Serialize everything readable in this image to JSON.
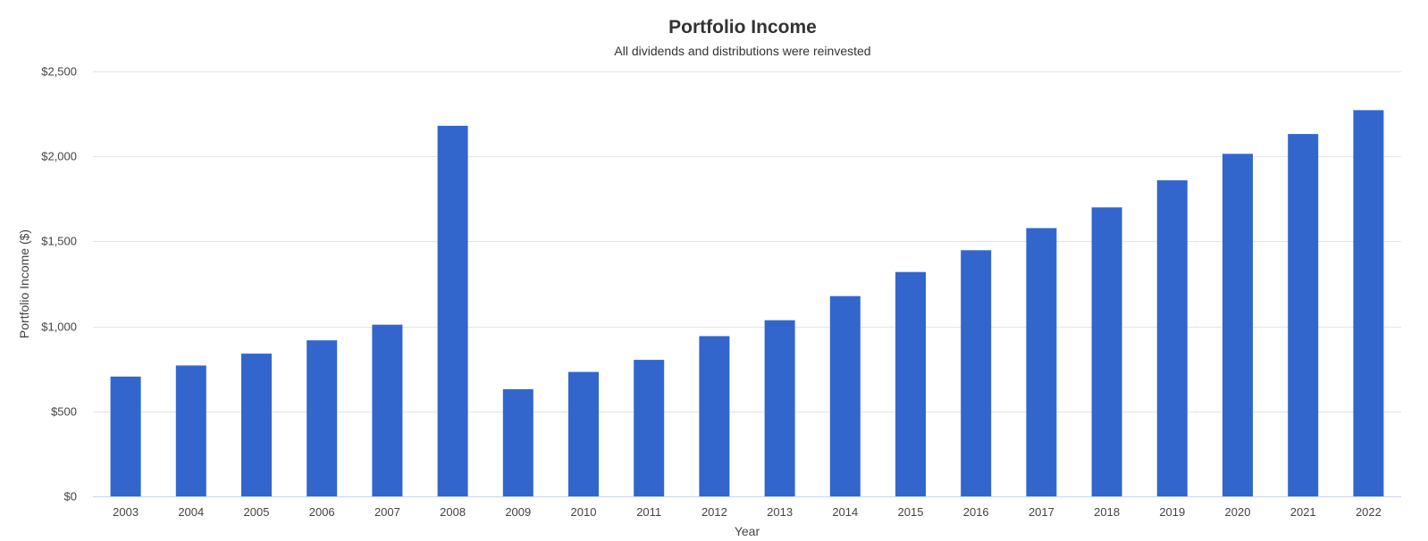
{
  "chart_data": {
    "type": "bar",
    "title": "Portfolio Income",
    "subtitle": "All dividends and distributions were reinvested",
    "xlabel": "Year",
    "ylabel": "Portfolio Income ($)",
    "ylim": [
      0,
      2500
    ],
    "yticks": [
      0,
      500,
      1000,
      1500,
      2000,
      2500
    ],
    "ytick_labels": [
      "$0",
      "$500",
      "$1,000",
      "$1,500",
      "$2,000",
      "$2,500"
    ],
    "grid": true,
    "bar_color": "#3366cc",
    "categories": [
      "2003",
      "2004",
      "2005",
      "2006",
      "2007",
      "2008",
      "2009",
      "2010",
      "2011",
      "2012",
      "2013",
      "2014",
      "2015",
      "2016",
      "2017",
      "2018",
      "2019",
      "2020",
      "2021",
      "2022"
    ],
    "values": [
      705,
      770,
      840,
      918,
      1010,
      2180,
      630,
      732,
      803,
      943,
      1036,
      1178,
      1320,
      1448,
      1578,
      1700,
      1860,
      2015,
      2132,
      2272
    ]
  }
}
